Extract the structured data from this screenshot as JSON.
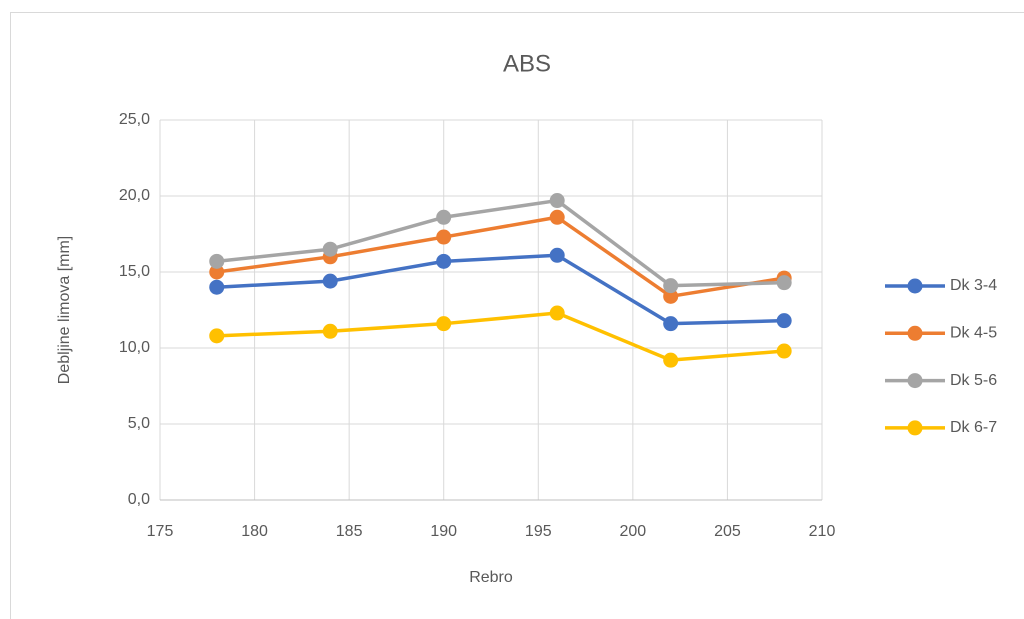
{
  "chart_data": {
    "type": "line",
    "title": "ABS",
    "xlabel": "Rebro",
    "ylabel": "Debljine limova [mm]",
    "x": [
      178,
      184,
      190,
      196,
      202,
      208
    ],
    "series": [
      {
        "name": "Dk 3-4",
        "color": "#4472c4",
        "values": [
          14.0,
          14.4,
          15.7,
          16.1,
          11.6,
          11.8
        ]
      },
      {
        "name": "Dk 4-5",
        "color": "#ed7d31",
        "values": [
          15.0,
          16.0,
          17.3,
          18.6,
          13.4,
          14.6
        ]
      },
      {
        "name": "Dk 5-6",
        "color": "#a5a5a5",
        "values": [
          15.7,
          16.5,
          18.6,
          19.7,
          14.1,
          14.3
        ]
      },
      {
        "name": "Dk 6-7",
        "color": "#ffc000",
        "values": [
          10.8,
          11.1,
          11.6,
          12.3,
          9.2,
          9.8
        ]
      }
    ],
    "xlim": [
      175,
      210
    ],
    "xticks": [
      175,
      180,
      185,
      190,
      195,
      200,
      205,
      210
    ],
    "ylim": [
      0,
      25
    ],
    "yticks": [
      {
        "value": 0,
        "label": "0,0"
      },
      {
        "value": 5,
        "label": "5,0"
      },
      {
        "value": 10,
        "label": "10,0"
      },
      {
        "value": 15,
        "label": "15,0"
      },
      {
        "value": 20,
        "label": "20,0"
      },
      {
        "value": 25,
        "label": "25,0"
      }
    ],
    "grid": true,
    "legend": "right"
  }
}
